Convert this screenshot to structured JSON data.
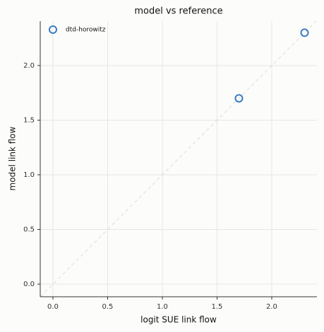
{
  "chart_data": {
    "type": "scatter",
    "title": "model vs reference",
    "x_label": "logit SUE link flow",
    "y_label": "model link flow",
    "series": [
      {
        "name": "dtd-horowitz",
        "color": "#3a7cc4",
        "x": [
          1.7,
          2.3
        ],
        "values": [
          1.7,
          2.3
        ]
      }
    ],
    "xlim": [
      -0.116,
      2.413
    ],
    "ylim": [
      -0.116,
      2.406
    ],
    "xticks": [
      {
        "value": 0,
        "label": "0.0"
      },
      0.5,
      {
        "value": 1,
        "label": "1.0"
      },
      1.5,
      {
        "value": 2,
        "label": "2.0"
      }
    ],
    "yticks": [
      {
        "value": 0,
        "label": "0.0"
      },
      0.5,
      {
        "value": 1,
        "label": "1.0"
      },
      1.5,
      {
        "value": 2,
        "label": "2.0"
      }
    ],
    "grid": true,
    "legend": "upper left",
    "diagonal": true
  }
}
